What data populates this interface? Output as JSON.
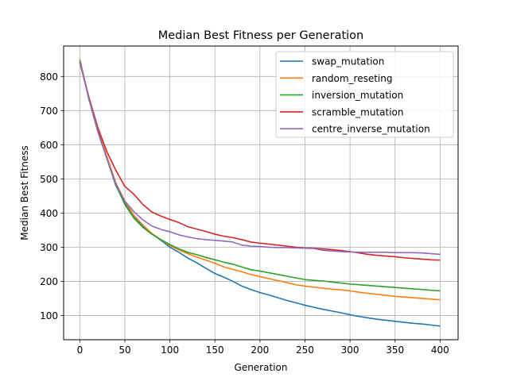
{
  "chart_data": {
    "type": "line",
    "title": "Median Best Fitness per Generation",
    "xlabel": "Generation",
    "ylabel": "Median Best Fitness",
    "xlim": [
      -18,
      420
    ],
    "ylim": [
      29,
      889
    ],
    "xticks": [
      0,
      50,
      100,
      150,
      200,
      250,
      300,
      350,
      400
    ],
    "yticks": [
      100,
      200,
      300,
      400,
      500,
      600,
      700,
      800
    ],
    "grid": true,
    "legend_position": "top-right",
    "series": [
      {
        "name": "swap_mutation",
        "color": "#1f77b4",
        "points": [
          [
            0,
            850
          ],
          [
            10,
            735
          ],
          [
            20,
            640
          ],
          [
            30,
            560
          ],
          [
            40,
            480
          ],
          [
            50,
            430
          ],
          [
            60,
            390
          ],
          [
            70,
            360
          ],
          [
            80,
            340
          ],
          [
            90,
            320
          ],
          [
            100,
            300
          ],
          [
            110,
            285
          ],
          [
            120,
            268
          ],
          [
            130,
            254
          ],
          [
            140,
            238
          ],
          [
            150,
            223
          ],
          [
            160,
            212
          ],
          [
            170,
            200
          ],
          [
            180,
            186
          ],
          [
            190,
            176
          ],
          [
            200,
            167
          ],
          [
            210,
            160
          ],
          [
            220,
            152
          ],
          [
            230,
            144
          ],
          [
            240,
            137
          ],
          [
            250,
            130
          ],
          [
            260,
            124
          ],
          [
            270,
            118
          ],
          [
            280,
            113
          ],
          [
            290,
            108
          ],
          [
            300,
            102
          ],
          [
            310,
            97
          ],
          [
            320,
            93
          ],
          [
            330,
            89
          ],
          [
            340,
            86
          ],
          [
            350,
            83
          ],
          [
            360,
            80
          ],
          [
            370,
            77
          ],
          [
            380,
            75
          ],
          [
            390,
            72
          ],
          [
            400,
            69
          ]
        ]
      },
      {
        "name": "random_reseting",
        "color": "#ff7f0e",
        "points": [
          [
            0,
            848
          ],
          [
            10,
            738
          ],
          [
            20,
            645
          ],
          [
            30,
            566
          ],
          [
            40,
            488
          ],
          [
            50,
            435
          ],
          [
            60,
            393
          ],
          [
            70,
            365
          ],
          [
            80,
            340
          ],
          [
            90,
            322
          ],
          [
            100,
            305
          ],
          [
            110,
            292
          ],
          [
            120,
            281
          ],
          [
            130,
            271
          ],
          [
            140,
            262
          ],
          [
            150,
            253
          ],
          [
            160,
            242
          ],
          [
            170,
            235
          ],
          [
            180,
            228
          ],
          [
            190,
            220
          ],
          [
            200,
            214
          ],
          [
            210,
            208
          ],
          [
            220,
            202
          ],
          [
            230,
            196
          ],
          [
            240,
            190
          ],
          [
            250,
            186
          ],
          [
            260,
            183
          ],
          [
            270,
            180
          ],
          [
            280,
            177
          ],
          [
            290,
            175
          ],
          [
            300,
            172
          ],
          [
            310,
            168
          ],
          [
            320,
            165
          ],
          [
            330,
            162
          ],
          [
            340,
            159
          ],
          [
            350,
            156
          ],
          [
            360,
            154
          ],
          [
            370,
            152
          ],
          [
            380,
            150
          ],
          [
            390,
            148
          ],
          [
            400,
            146
          ]
        ]
      },
      {
        "name": "inversion_mutation",
        "color": "#2ca02c",
        "points": [
          [
            0,
            845
          ],
          [
            10,
            734
          ],
          [
            20,
            638
          ],
          [
            30,
            560
          ],
          [
            40,
            482
          ],
          [
            50,
            425
          ],
          [
            60,
            385
          ],
          [
            70,
            358
          ],
          [
            80,
            338
          ],
          [
            90,
            322
          ],
          [
            100,
            308
          ],
          [
            110,
            295
          ],
          [
            120,
            285
          ],
          [
            130,
            278
          ],
          [
            140,
            270
          ],
          [
            150,
            263
          ],
          [
            160,
            256
          ],
          [
            170,
            250
          ],
          [
            180,
            242
          ],
          [
            190,
            234
          ],
          [
            200,
            230
          ],
          [
            210,
            225
          ],
          [
            220,
            220
          ],
          [
            230,
            215
          ],
          [
            240,
            210
          ],
          [
            250,
            205
          ],
          [
            260,
            203
          ],
          [
            270,
            201
          ],
          [
            280,
            198
          ],
          [
            290,
            195
          ],
          [
            300,
            192
          ],
          [
            310,
            190
          ],
          [
            320,
            188
          ],
          [
            330,
            186
          ],
          [
            340,
            184
          ],
          [
            350,
            182
          ],
          [
            360,
            180
          ],
          [
            370,
            178
          ],
          [
            380,
            176
          ],
          [
            390,
            174
          ],
          [
            400,
            172
          ]
        ]
      },
      {
        "name": "scramble_mutation",
        "color": "#d62728",
        "points": [
          [
            0,
            840
          ],
          [
            10,
            740
          ],
          [
            20,
            650
          ],
          [
            30,
            580
          ],
          [
            40,
            525
          ],
          [
            50,
            478
          ],
          [
            60,
            455
          ],
          [
            70,
            425
          ],
          [
            80,
            403
          ],
          [
            90,
            391
          ],
          [
            100,
            381
          ],
          [
            110,
            372
          ],
          [
            120,
            360
          ],
          [
            130,
            353
          ],
          [
            140,
            346
          ],
          [
            150,
            338
          ],
          [
            160,
            332
          ],
          [
            170,
            328
          ],
          [
            180,
            322
          ],
          [
            190,
            315
          ],
          [
            200,
            312
          ],
          [
            210,
            309
          ],
          [
            220,
            306
          ],
          [
            230,
            303
          ],
          [
            240,
            300
          ],
          [
            250,
            298
          ],
          [
            260,
            297
          ],
          [
            270,
            295
          ],
          [
            280,
            293
          ],
          [
            290,
            290
          ],
          [
            300,
            287
          ],
          [
            310,
            283
          ],
          [
            320,
            279
          ],
          [
            330,
            276
          ],
          [
            340,
            274
          ],
          [
            350,
            272
          ],
          [
            360,
            269
          ],
          [
            370,
            267
          ],
          [
            380,
            265
          ],
          [
            390,
            263
          ],
          [
            400,
            262
          ]
        ]
      },
      {
        "name": "centre_inverse_mutation",
        "color": "#9467bd",
        "points": [
          [
            0,
            842
          ],
          [
            10,
            736
          ],
          [
            20,
            640
          ],
          [
            30,
            560
          ],
          [
            40,
            485
          ],
          [
            50,
            435
          ],
          [
            60,
            404
          ],
          [
            70,
            380
          ],
          [
            80,
            362
          ],
          [
            90,
            352
          ],
          [
            100,
            345
          ],
          [
            110,
            336
          ],
          [
            120,
            330
          ],
          [
            130,
            325
          ],
          [
            140,
            322
          ],
          [
            150,
            320
          ],
          [
            160,
            318
          ],
          [
            170,
            315
          ],
          [
            180,
            306
          ],
          [
            190,
            303
          ],
          [
            200,
            302
          ],
          [
            210,
            300
          ],
          [
            220,
            299
          ],
          [
            230,
            299
          ],
          [
            240,
            298
          ],
          [
            250,
            297
          ],
          [
            260,
            296
          ],
          [
            270,
            291
          ],
          [
            280,
            289
          ],
          [
            290,
            287
          ],
          [
            300,
            286
          ],
          [
            310,
            285
          ],
          [
            320,
            285
          ],
          [
            330,
            285
          ],
          [
            340,
            285
          ],
          [
            350,
            284
          ],
          [
            360,
            284
          ],
          [
            370,
            284
          ],
          [
            380,
            283
          ],
          [
            390,
            281
          ],
          [
            400,
            279
          ]
        ]
      }
    ]
  }
}
